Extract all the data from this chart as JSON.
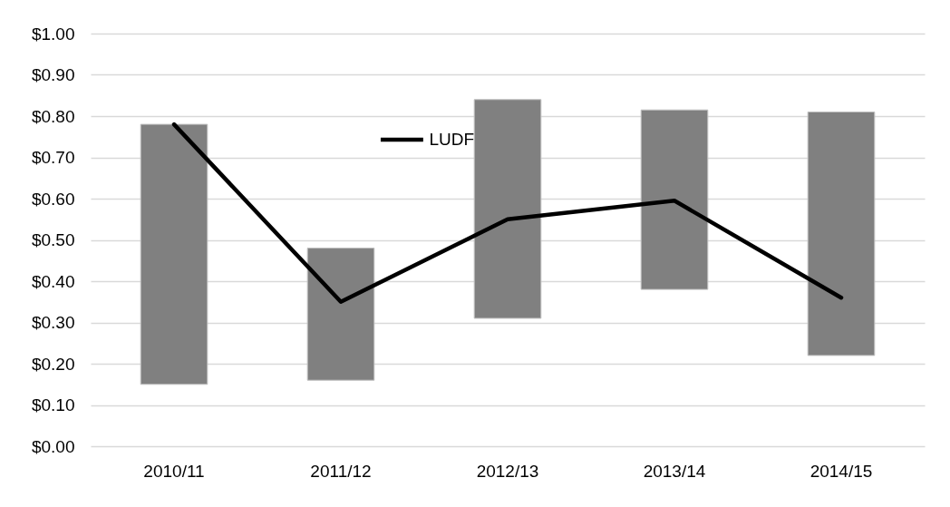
{
  "chart_data": {
    "type": "bar",
    "categories": [
      "2010/11",
      "2011/12",
      "2012/13",
      "2013/14",
      "2014/15"
    ],
    "ylim": [
      0,
      1
    ],
    "yticks": [
      {
        "value": 0,
        "label": "$0.00"
      },
      {
        "value": 0.1,
        "label": "$0.10"
      },
      {
        "value": 0.2,
        "label": "$0.20"
      },
      {
        "value": 0.3,
        "label": "$0.30"
      },
      {
        "value": 0.4,
        "label": "$0.40"
      },
      {
        "value": 0.5,
        "label": "$0.50"
      },
      {
        "value": 0.6,
        "label": "$0.60"
      },
      {
        "value": 0.7,
        "label": "$0.70"
      },
      {
        "value": 0.8,
        "label": "$0.80"
      },
      {
        "value": 0.9,
        "label": "$0.90"
      },
      {
        "value": 1.0,
        "label": "$1.00"
      }
    ],
    "grid": "y",
    "legend": "top",
    "series": [
      {
        "color": "#808080",
        "base": [
          0.15,
          0.16,
          0.31,
          0.38,
          0.22
        ],
        "values": [
          0.63,
          0.32,
          0.53,
          0.435,
          0.59
        ]
      },
      {
        "type": "line",
        "name": "LUDF",
        "color": "#000000",
        "values": [
          0.78,
          0.35,
          0.55,
          0.595,
          0.36
        ]
      }
    ]
  }
}
